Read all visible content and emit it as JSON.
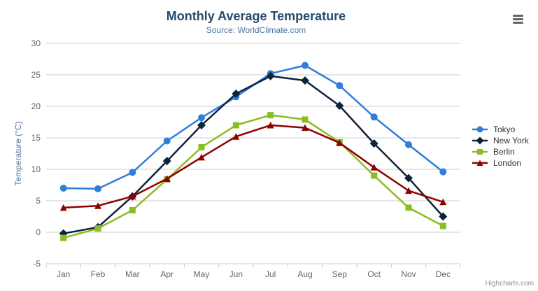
{
  "credit": "Highcharts.com",
  "colors": {
    "title": "#274b6d",
    "subtitle": "#4d759e",
    "axis_title": "#4d759e",
    "tick_label": "#666666",
    "grid": "#cccccc",
    "axis_line": "#c0d0e0",
    "legend_text": "#333333",
    "credit": "#909090",
    "menu_icon": "#666666"
  },
  "chart_data": {
    "type": "line",
    "title": "Monthly Average Temperature",
    "subtitle": "Source: WorldClimate.com",
    "categories": [
      "Jan",
      "Feb",
      "Mar",
      "Apr",
      "May",
      "Jun",
      "Jul",
      "Aug",
      "Sep",
      "Oct",
      "Nov",
      "Dec"
    ],
    "xlabel": "",
    "ylabel": "Temperature (°C)",
    "ylim": [
      -5,
      30
    ],
    "ytick_step": 5,
    "grid": true,
    "legend_position": "right",
    "series": [
      {
        "name": "Tokyo",
        "color": "#2f7ed8",
        "marker": "circle",
        "values": [
          7.0,
          6.9,
          9.5,
          14.5,
          18.2,
          21.5,
          25.2,
          26.5,
          23.3,
          18.3,
          13.9,
          9.6
        ]
      },
      {
        "name": "New York",
        "color": "#0d233a",
        "marker": "diamond",
        "values": [
          -0.2,
          0.8,
          5.7,
          11.3,
          17.0,
          22.0,
          24.8,
          24.1,
          20.1,
          14.1,
          8.6,
          2.5
        ]
      },
      {
        "name": "Berlin",
        "color": "#8bbc21",
        "marker": "square",
        "values": [
          -0.9,
          0.6,
          3.5,
          8.4,
          13.5,
          17.0,
          18.6,
          17.9,
          14.3,
          9.0,
          3.9,
          1.0
        ]
      },
      {
        "name": "London",
        "color": "#910000",
        "marker": "triangle",
        "values": [
          3.9,
          4.2,
          5.7,
          8.5,
          11.9,
          15.2,
          17.0,
          16.6,
          14.2,
          10.3,
          6.6,
          4.8
        ]
      }
    ]
  }
}
